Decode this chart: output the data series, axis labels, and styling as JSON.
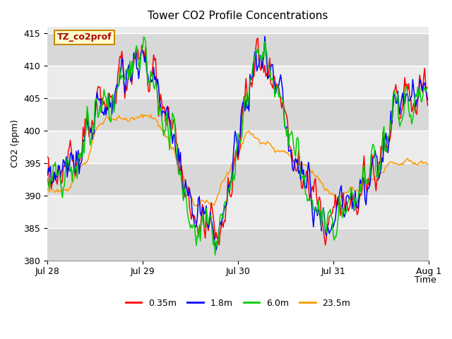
{
  "title": "Tower CO2 Profile Concentrations",
  "xlabel": "Time",
  "ylabel": "CO2 (ppm)",
  "ylim": [
    380,
    416
  ],
  "yticks": [
    380,
    385,
    390,
    395,
    400,
    405,
    410,
    415
  ],
  "legend_labels": [
    "0.35m",
    "1.8m",
    "6.0m",
    "23.5m"
  ],
  "line_colors": [
    "#ff0000",
    "#0000ff",
    "#00cc00",
    "#ff9900"
  ],
  "annotation_text": "TZ_co2prof",
  "annotation_facecolor": "#ffffcc",
  "annotation_edgecolor": "#cc8800",
  "plot_bg_color": "#ebebeb",
  "grid_color": "#ffffff",
  "n_days": 3.5
}
